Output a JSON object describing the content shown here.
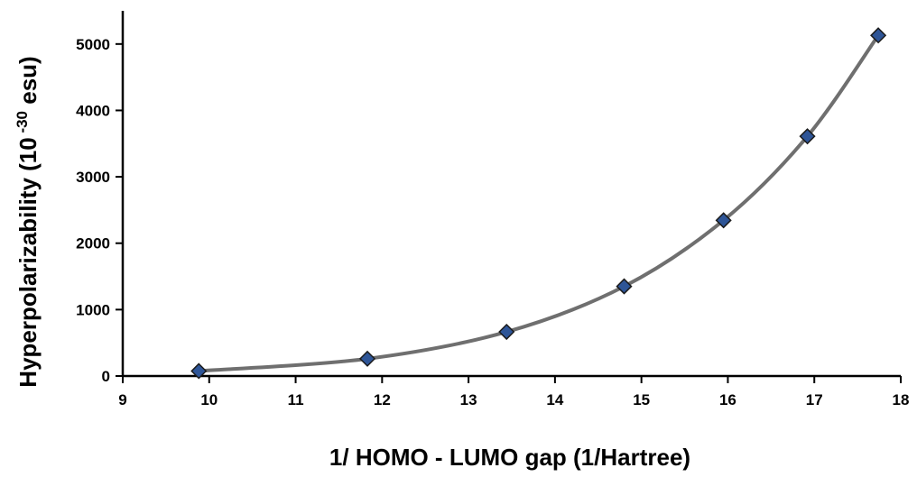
{
  "chart_data": {
    "type": "scatter",
    "title": "",
    "xlabel": "1/ HOMO - LUMO gap (1/Hartree)",
    "ylabel": {
      "prefix": "Hyperpolarizability (10",
      "superscript": " -30",
      "suffix": " esu)"
    },
    "xlim": [
      9,
      18
    ],
    "ylim": [
      0,
      5000
    ],
    "xticks": [
      9,
      10,
      11,
      12,
      13,
      14,
      15,
      16,
      17,
      18
    ],
    "yticks": [
      0,
      1000,
      2000,
      3000,
      4000,
      5000
    ],
    "grid": false,
    "legend": "none",
    "series": [
      {
        "marker": "diamond",
        "marker_color": "#2E5597",
        "marker_edge_color": "#1A1A1A",
        "line": "smooth",
        "line_color": "#6F6F6F",
        "x": [
          9.88,
          11.83,
          13.44,
          14.8,
          15.95,
          16.92,
          17.74
        ],
        "y": [
          75,
          260,
          665,
          1350,
          2345,
          3610,
          5130
        ]
      }
    ]
  }
}
